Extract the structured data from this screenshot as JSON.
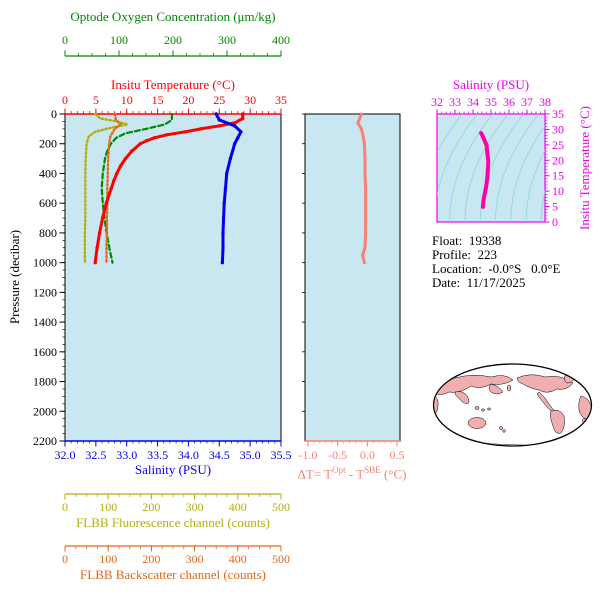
{
  "colors": {
    "green": "#008800",
    "red": "#ff0000",
    "blue": "#0000f0",
    "olive": "#b3b000",
    "orange": "#e06818",
    "salmon": "#f98072",
    "magenta": "#ee00ee",
    "magenta_line": "#ff00aa",
    "black": "#000000",
    "plot_bg": "#c8e7f0",
    "contour": "#8fd4d8",
    "land": "#f1aeae",
    "ocean": "#ffffff"
  },
  "info": {
    "lines": [
      "Float:  19338",
      "Profile:  223",
      "Location:  -0.0°S   0.0°E",
      "Date:  11/17/2025"
    ]
  },
  "chart_data": [
    {
      "id": "profile-plot",
      "type": "line",
      "y_axis": {
        "label": "Pressure (decibar)",
        "range": [
          0,
          2200
        ],
        "reversed": true,
        "ticks": [
          0,
          200,
          400,
          600,
          800,
          1000,
          1200,
          1400,
          1600,
          1800,
          2000,
          2200
        ]
      },
      "x_axes": [
        {
          "id": "oxygen",
          "label": "Optode Oxygen Concentration (μm/kg)",
          "color_key": "green",
          "range": [
            0,
            400
          ],
          "ticks": [
            0,
            100,
            200,
            300,
            400
          ]
        },
        {
          "id": "temperature",
          "label": "Insitu Temperature (°C)",
          "color_key": "red",
          "range": [
            0,
            35
          ],
          "ticks": [
            0,
            5,
            10,
            15,
            20,
            25,
            30,
            35
          ]
        },
        {
          "id": "salinity",
          "label": "Salinity (PSU)",
          "color_key": "blue",
          "range": [
            32,
            35.5
          ],
          "ticks": [
            "32.0",
            "32.5",
            "33.0",
            "33.5",
            "34.0",
            "34.5",
            "35.0",
            "35.5"
          ]
        },
        {
          "id": "fluorescence",
          "label": "FLBB Fluorescence channel (counts)",
          "color_key": "olive",
          "range": [
            0,
            500
          ],
          "ticks": [
            0,
            100,
            200,
            300,
            400,
            500
          ]
        },
        {
          "id": "backscatter",
          "label": "FLBB Backscatter channel (counts)",
          "color_key": "orange",
          "range": [
            0,
            500
          ],
          "ticks": [
            0,
            100,
            200,
            300,
            400,
            500
          ]
        }
      ],
      "series": [
        {
          "name": "oxygen",
          "axis": "oxygen",
          "color_key": "green",
          "dash": "5,3",
          "width": 2.2,
          "marker": "",
          "points": [
            [
              0,
              198
            ],
            [
              40,
              198
            ],
            [
              70,
              185
            ],
            [
              100,
              150
            ],
            [
              130,
              112
            ],
            [
              160,
              95
            ],
            [
              200,
              85
            ],
            [
              250,
              78
            ],
            [
              300,
              74
            ],
            [
              400,
              70
            ],
            [
              500,
              68
            ],
            [
              600,
              70
            ],
            [
              700,
              73
            ],
            [
              800,
              77
            ],
            [
              900,
              82
            ],
            [
              1000,
              88
            ]
          ]
        },
        {
          "name": "fluorescence",
          "axis": "fluorescence",
          "color_key": "olive",
          "dash": "1.5,2.5",
          "width": 2.4,
          "marker": "",
          "points": [
            [
              0,
              70
            ],
            [
              30,
              82
            ],
            [
              50,
              120
            ],
            [
              70,
              145
            ],
            [
              90,
              110
            ],
            [
              120,
              70
            ],
            [
              150,
              55
            ],
            [
              200,
              50
            ],
            [
              300,
              48
            ],
            [
              400,
              47
            ],
            [
              500,
              47
            ],
            [
              600,
              47
            ],
            [
              700,
              47
            ],
            [
              800,
              46
            ],
            [
              900,
              46
            ],
            [
              1000,
              46
            ]
          ]
        },
        {
          "name": "backscatter",
          "axis": "backscatter",
          "color_key": "orange",
          "dash": "1.5,2.5",
          "width": 2.4,
          "marker": "",
          "points": [
            [
              0,
              115
            ],
            [
              40,
              118
            ],
            [
              70,
              128
            ],
            [
              100,
              115
            ],
            [
              150,
              105
            ],
            [
              200,
              102
            ],
            [
              300,
              100
            ],
            [
              400,
              99
            ],
            [
              500,
              98
            ],
            [
              600,
              98
            ],
            [
              700,
              97
            ],
            [
              800,
              97
            ],
            [
              900,
              96
            ],
            [
              1000,
              96
            ]
          ]
        },
        {
          "name": "temperature",
          "axis": "temperature",
          "color_key": "red",
          "dash": "",
          "width": 3,
          "marker": "dot",
          "points": [
            [
              0,
              28.8
            ],
            [
              30,
              28.8
            ],
            [
              60,
              27.5
            ],
            [
              80,
              25
            ],
            [
              100,
              22
            ],
            [
              120,
              19.5
            ],
            [
              140,
              16.5
            ],
            [
              160,
              14.5
            ],
            [
              180,
              13.2
            ],
            [
              200,
              12.2
            ],
            [
              250,
              10.8
            ],
            [
              300,
              9.8
            ],
            [
              350,
              9
            ],
            [
              400,
              8.4
            ],
            [
              450,
              7.9
            ],
            [
              500,
              7.5
            ],
            [
              600,
              6.7
            ],
            [
              700,
              6.1
            ],
            [
              800,
              5.6
            ],
            [
              900,
              5.2
            ],
            [
              1000,
              4.9
            ]
          ]
        },
        {
          "name": "salinity",
          "axis": "salinity",
          "color_key": "blue",
          "dash": "",
          "width": 3,
          "marker": "dot",
          "points": [
            [
              0,
              34.45
            ],
            [
              40,
              34.5
            ],
            [
              80,
              34.75
            ],
            [
              120,
              34.85
            ],
            [
              160,
              34.8
            ],
            [
              200,
              34.75
            ],
            [
              300,
              34.68
            ],
            [
              400,
              34.62
            ],
            [
              500,
              34.6
            ],
            [
              600,
              34.58
            ],
            [
              700,
              34.57
            ],
            [
              800,
              34.56
            ],
            [
              900,
              34.56
            ],
            [
              1000,
              34.55
            ]
          ]
        }
      ]
    },
    {
      "id": "delta-t-plot",
      "type": "line",
      "x_axis": {
        "label_parts": {
          "prefix": "ΔT= T",
          "sup1": "Opt",
          "mid": " - T",
          "sup2": "SBE",
          "suffix": " (°C)"
        },
        "color_key": "salmon",
        "range": [
          -1.0,
          0.5
        ],
        "ticks": [
          "-1.0",
          "-0.5",
          "0.0",
          "0.5"
        ]
      },
      "y_axis": {
        "range": [
          0,
          2200
        ],
        "reversed": true
      },
      "series": [
        {
          "name": "delta-t",
          "color_key": "salmon",
          "width": 3,
          "marker": "dot",
          "points": [
            [
              0,
              -0.1
            ],
            [
              30,
              -0.13
            ],
            [
              60,
              -0.16
            ],
            [
              100,
              -0.1
            ],
            [
              150,
              -0.07
            ],
            [
              200,
              -0.05
            ],
            [
              300,
              -0.04
            ],
            [
              400,
              -0.04
            ],
            [
              500,
              -0.03
            ],
            [
              600,
              -0.03
            ],
            [
              700,
              -0.03
            ],
            [
              800,
              -0.03
            ],
            [
              900,
              -0.04
            ],
            [
              950,
              -0.08
            ],
            [
              1000,
              -0.05
            ]
          ]
        }
      ]
    },
    {
      "id": "t-s-plot",
      "type": "line",
      "x_axis": {
        "label": "Salinity (PSU)",
        "color_key": "magenta",
        "range": [
          32,
          38
        ],
        "ticks": [
          32,
          33,
          34,
          35,
          36,
          37,
          38
        ]
      },
      "y_axis": {
        "label": "Insitu Temperature (°C)",
        "color_key": "magenta",
        "range": [
          0,
          35
        ],
        "ticks": [
          0,
          5,
          10,
          15,
          20,
          25,
          30,
          35
        ],
        "position": "right"
      },
      "series": [
        {
          "name": "t-s-curve",
          "color_key": "magenta_line",
          "width": 4,
          "marker": "",
          "points": [
            [
              34.45,
              28.8
            ],
            [
              34.52,
              28.0
            ],
            [
              34.75,
              25.0
            ],
            [
              34.85,
              19.5
            ],
            [
              34.8,
              14.5
            ],
            [
              34.75,
              12.2
            ],
            [
              34.68,
              9.8
            ],
            [
              34.62,
              8.4
            ],
            [
              34.58,
              6.7
            ],
            [
              34.56,
              5.6
            ],
            [
              34.55,
              4.9
            ]
          ]
        }
      ]
    }
  ]
}
